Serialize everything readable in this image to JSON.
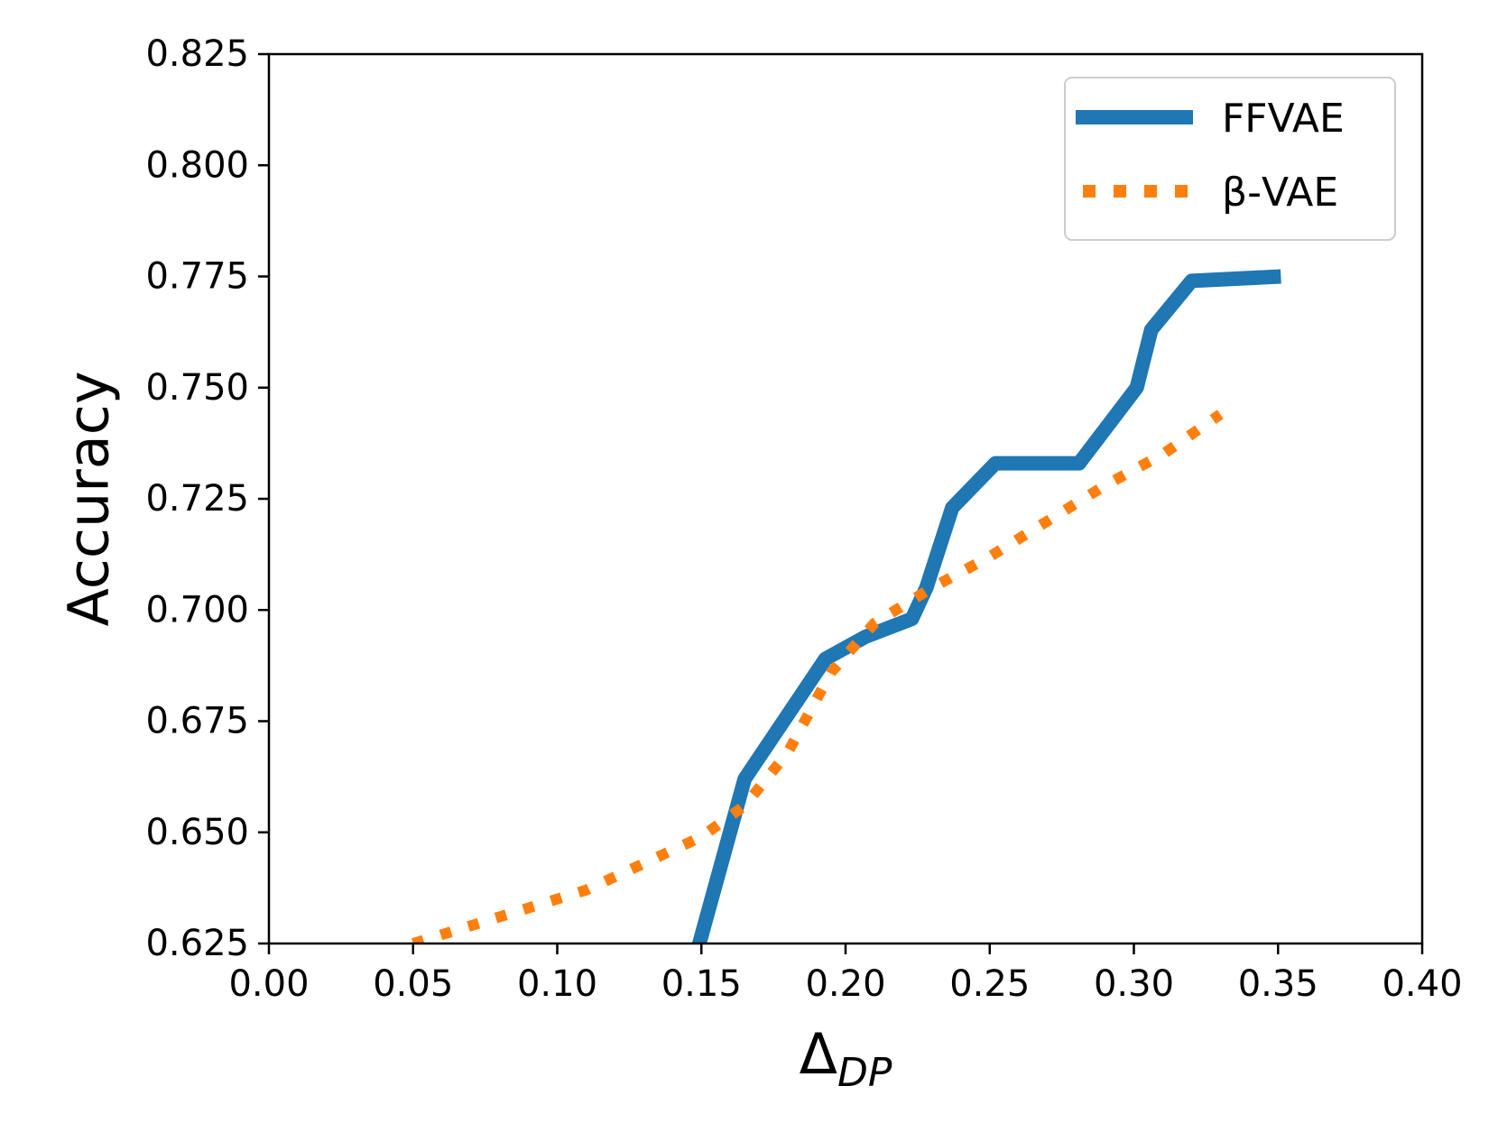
{
  "chart_data": {
    "type": "line",
    "title": "",
    "xlabel": "Δ",
    "xlabel_subscript": "DP",
    "ylabel": "Accuracy",
    "xlim": [
      0.0,
      0.4
    ],
    "ylim": [
      0.625,
      0.825
    ],
    "xticks": [
      0.0,
      0.05,
      0.1,
      0.15,
      0.2,
      0.25,
      0.3,
      0.35,
      0.4
    ],
    "xtick_labels": [
      "0.00",
      "0.05",
      "0.10",
      "0.15",
      "0.20",
      "0.25",
      "0.30",
      "0.35",
      "0.40"
    ],
    "yticks": [
      0.625,
      0.65,
      0.675,
      0.7,
      0.725,
      0.75,
      0.775,
      0.8,
      0.825
    ],
    "ytick_labels": [
      "0.625",
      "0.650",
      "0.675",
      "0.700",
      "0.725",
      "0.750",
      "0.775",
      "0.800",
      "0.825"
    ],
    "grid": false,
    "legend_position": "top-right",
    "series": [
      {
        "name": "FFVAE",
        "color": "#1f77b4",
        "style": "solid",
        "x": [
          0.148,
          0.165,
          0.193,
          0.207,
          0.223,
          0.228,
          0.237,
          0.252,
          0.281,
          0.301,
          0.306,
          0.32,
          0.351
        ],
        "y": [
          0.622,
          0.662,
          0.689,
          0.694,
          0.698,
          0.705,
          0.723,
          0.733,
          0.733,
          0.75,
          0.763,
          0.774,
          0.775
        ]
      },
      {
        "name": "β-VAE",
        "color": "#ff7f0e",
        "style": "dotted",
        "x": [
          0.05,
          0.07,
          0.09,
          0.11,
          0.13,
          0.15,
          0.165,
          0.18,
          0.195,
          0.21,
          0.23,
          0.25,
          0.27,
          0.29,
          0.31,
          0.33
        ],
        "y": [
          0.625,
          0.629,
          0.633,
          0.637,
          0.643,
          0.649,
          0.656,
          0.668,
          0.686,
          0.697,
          0.705,
          0.712,
          0.72,
          0.728,
          0.735,
          0.744
        ]
      }
    ]
  }
}
